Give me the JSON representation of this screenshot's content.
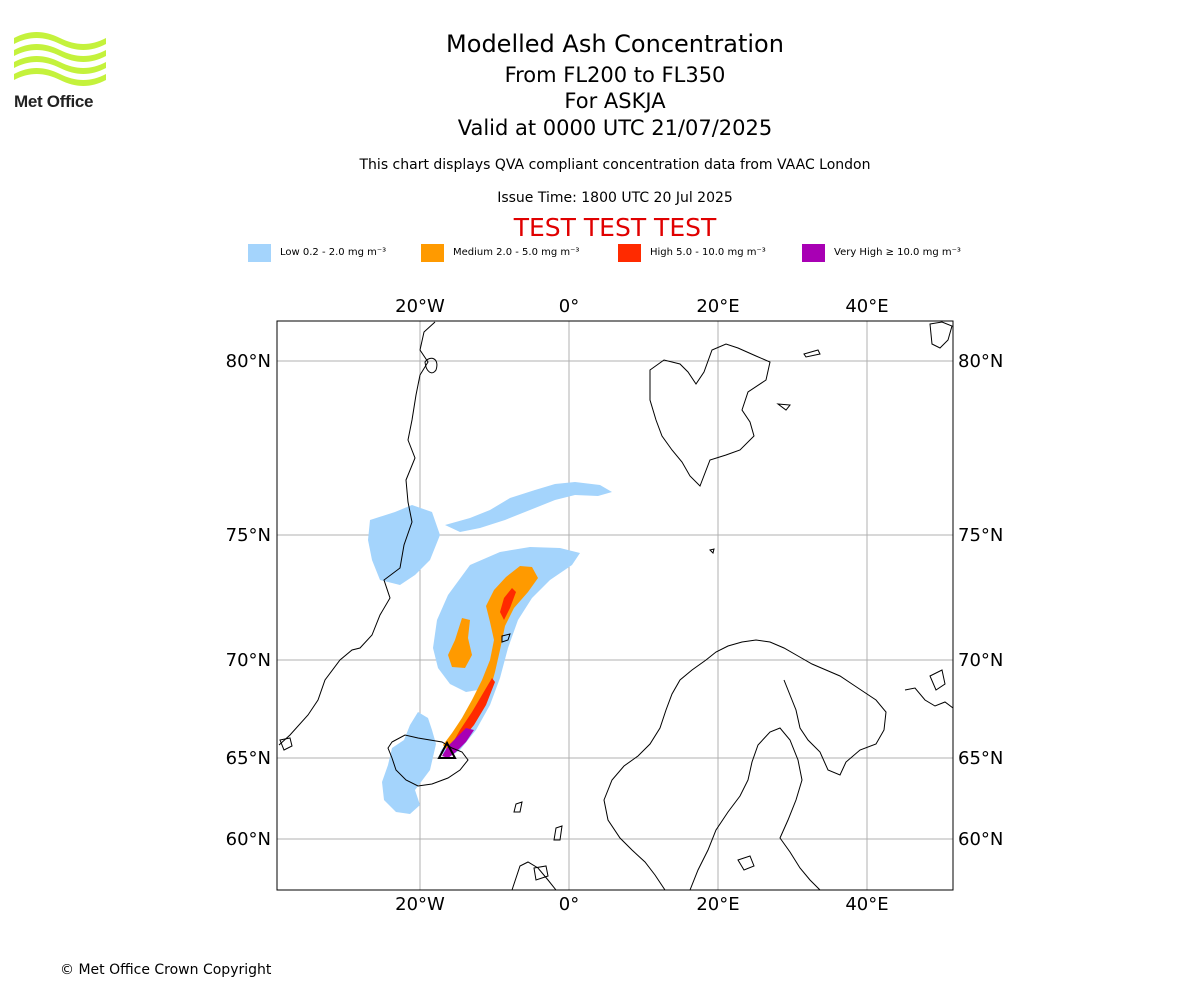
{
  "header": {
    "title": "Modelled Ash Concentration",
    "levels": "From FL200 to FL350",
    "volcano": "For ASKJA",
    "valid": "Valid at 0000 UTC 21/07/2025",
    "note": "This chart displays QVA compliant concentration data from VAAC London",
    "issue_time": "Issue Time: 1800 UTC 20 Jul 2025",
    "test_banner": "TEST TEST TEST"
  },
  "logo": {
    "text": "Met Office",
    "icon": "met-office-wave-logo",
    "color": "#c4f23c"
  },
  "legend": [
    {
      "label": "Low 0.2 - 2.0 mg m⁻³",
      "color": "#a4d4fc"
    },
    {
      "label": "Medium 2.0 - 5.0 mg m⁻³",
      "color": "#ff9a00"
    },
    {
      "label": "High 5.0 - 10.0 mg m⁻³",
      "color": "#ff2a00"
    },
    {
      "label": "Very High ≥ 10.0 mg m⁻³",
      "color": "#a800b4"
    }
  ],
  "map": {
    "lon_ticks": [
      "20°W",
      "0°",
      "20°E",
      "40°E"
    ],
    "lat_ticks": [
      "80°N",
      "75°N",
      "70°N",
      "65°N",
      "60°N"
    ],
    "volcano_marker": "triangle-marker",
    "grid": true
  },
  "footer": {
    "copyright": "© Met Office Crown Copyright"
  }
}
